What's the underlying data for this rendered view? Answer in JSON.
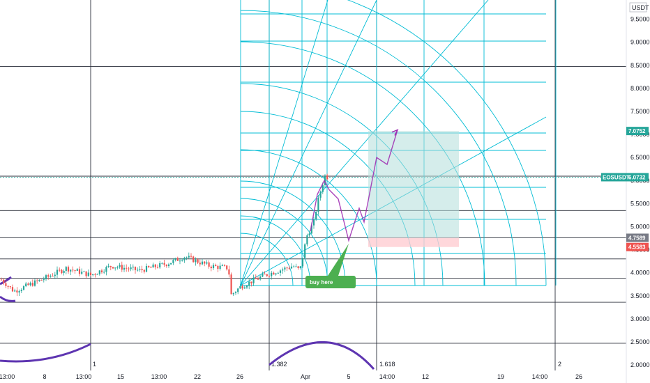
{
  "chart_data": {
    "type": "candlestick",
    "symbol": "EOSUSDT",
    "currency": "USDT",
    "price_axis": {
      "ticks": [
        "9.5000",
        "9.0000",
        "8.5000",
        "8.0000",
        "7.5000",
        "7.0000",
        "6.5000",
        "6.0000",
        "5.5000",
        "5.0000",
        "4.5000",
        "4.0000",
        "3.5000",
        "3.0000",
        "2.5000",
        "2.0000"
      ],
      "range": [
        1.95,
        9.85
      ]
    },
    "time_axis": {
      "ticks": [
        "13:00",
        "8",
        "13:00",
        "15",
        "13:00",
        "22",
        "26",
        "Apr",
        "5",
        "14:00",
        "12",
        "19",
        "14:00",
        "26"
      ]
    },
    "badges": {
      "target_price": "7.0752",
      "last_price_symbol": "EOSUSDT",
      "last_price": "6.0732",
      "entry_price": "4.7589",
      "stop_price": "4.5583"
    },
    "colors": {
      "up": "#26a69a",
      "down": "#ef5350",
      "fib": "#00bcd4",
      "arc": "#5e35b1",
      "forecast": "#9c27b0",
      "profit_zone": "#b2dfdb",
      "loss_zone": "#ffcdd2",
      "note": "#4caf50"
    },
    "horizontal_levels": [
      8.475,
      6.095,
      5.35,
      4.76,
      4.3,
      3.88,
      3.36,
      2.47
    ],
    "fib_time_labels": [
      "1",
      "1.382",
      "1.618",
      "2"
    ],
    "annotation": "buy here",
    "candles_sample": [
      [
        3.75,
        3.85,
        3.6,
        3.7
      ],
      [
        3.7,
        3.8,
        3.55,
        3.65
      ],
      [
        3.65,
        3.8,
        3.6,
        3.75
      ],
      [
        3.75,
        3.95,
        3.7,
        3.9
      ],
      [
        3.9,
        4.15,
        3.85,
        4.05
      ],
      [
        4.05,
        4.2,
        3.95,
        4.0
      ],
      [
        4.0,
        4.1,
        3.85,
        3.9
      ],
      [
        3.9,
        4.05,
        3.8,
        3.95
      ],
      [
        3.95,
        4.3,
        3.9,
        4.2
      ],
      [
        4.2,
        4.25,
        4.0,
        4.05
      ],
      [
        4.05,
        4.15,
        3.8,
        3.85
      ],
      [
        3.85,
        4.0,
        3.7,
        3.95
      ],
      [
        3.95,
        4.15,
        3.9,
        4.1
      ],
      [
        4.1,
        4.2,
        3.95,
        4.0
      ],
      [
        4.0,
        4.3,
        3.95,
        4.25
      ],
      [
        4.25,
        4.4,
        4.15,
        4.2
      ],
      [
        4.2,
        4.3,
        4.0,
        4.05
      ],
      [
        4.05,
        4.2,
        3.95,
        4.15
      ],
      [
        4.15,
        4.25,
        4.0,
        4.05
      ],
      [
        4.05,
        4.15,
        3.45,
        3.6
      ],
      [
        3.6,
        3.9,
        3.55,
        3.85
      ],
      [
        3.85,
        4.1,
        3.8,
        4.05
      ],
      [
        4.05,
        4.2,
        3.95,
        4.15
      ],
      [
        4.15,
        4.3,
        4.1,
        4.25
      ],
      [
        4.25,
        4.35,
        4.1,
        4.2
      ],
      [
        4.2,
        4.6,
        3.95,
        4.55
      ],
      [
        4.55,
        5.1,
        4.5,
        5.0
      ],
      [
        5.0,
        5.9,
        4.9,
        5.8
      ],
      [
        5.8,
        6.2,
        5.3,
        5.5
      ],
      [
        5.5,
        6.0,
        5.4,
        5.9
      ]
    ]
  }
}
